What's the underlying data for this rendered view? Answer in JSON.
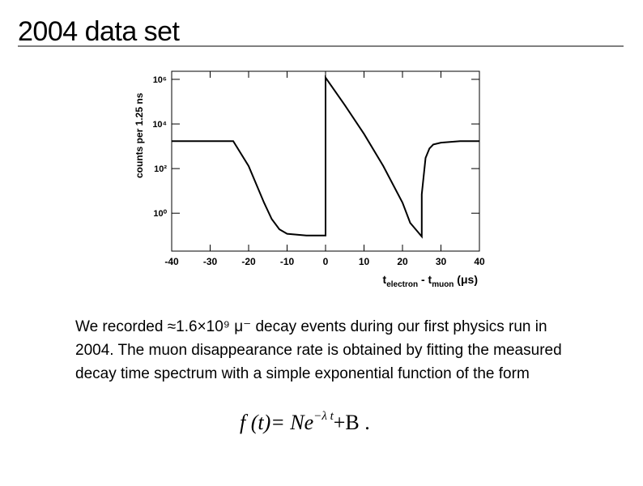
{
  "header": {
    "title": "2004 data set"
  },
  "chart_data": {
    "type": "line",
    "log_y": true,
    "ylabel": "counts per 1.25 ns",
    "xlabel_parts": [
      "t",
      "electron",
      " - t",
      "muon",
      " (μs)"
    ],
    "x": [
      -40,
      -24,
      -20,
      -16,
      -14,
      -12,
      -10,
      -5,
      0,
      0,
      5,
      10,
      15,
      20,
      22,
      25,
      25,
      26,
      27,
      28,
      30,
      35,
      40
    ],
    "series": [
      {
        "color": "#000000",
        "values": [
          1700,
          1700,
          130,
          3,
          0.55,
          0.19,
          0.12,
          0.1,
          0.1,
          1200000,
          70000,
          3600,
          130,
          3,
          0.37,
          0.09,
          7,
          300,
          800,
          1200,
          1450,
          1700,
          1700
        ]
      }
    ],
    "xlim": [
      -40,
      40
    ],
    "xticks": [
      -40,
      -30,
      -20,
      -10,
      0,
      10,
      20,
      30,
      40
    ],
    "ylim": [
      0.02,
      2300000
    ],
    "yticks": [
      {
        "value": 1,
        "label": "10⁰"
      },
      {
        "value": 100,
        "label": "10²"
      },
      {
        "value": 10000,
        "label": "10⁴"
      },
      {
        "value": 1000000,
        "label": "10⁶"
      }
    ]
  },
  "body": {
    "lines": [
      "We recorded ≈1.6×10⁹ μ⁻ decay events during our first physics run in",
      "2004.  The muon disappearance rate is obtained by fitting the measured",
      "decay time spectrum with a simple exponential function of the form"
    ],
    "formula_main": "f (t)= Ne",
    "formula_exponent": "−λ t",
    "formula_tail": "+B ."
  }
}
